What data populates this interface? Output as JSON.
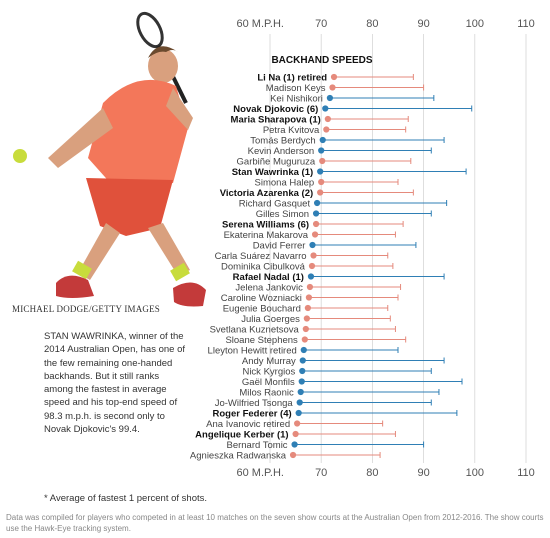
{
  "photo": {
    "credit": "MICHAEL DODGE/GETTY IMAGES",
    "caption": "STAN WAWRINKA, winner of the 2014 Australian Open, has one of the few remaining one-handed backhands. But it still ranks among the fastest in average speed and his top-end speed of 98.3 m.p.h. is second only to Novak Djokovic's 99.4."
  },
  "colors": {
    "female": "#e58a7c",
    "male": "#2f7fb5"
  },
  "chart_data": {
    "type": "scatter",
    "title": "BACKHAND SPEEDS",
    "x_ticks": [
      60,
      70,
      80,
      90,
      100,
      110
    ],
    "x_tick_labels_top": [
      "60 M.P.H.",
      "70",
      "80",
      "90",
      "100",
      "110"
    ],
    "x_tick_labels_bottom": [
      "60 M.P.H.",
      "70",
      "80",
      "90",
      "100",
      "110"
    ],
    "xlim": [
      55,
      113
    ],
    "series": [
      {
        "name": "Li Na (1) retired",
        "gender": "female",
        "bold": true,
        "average": 72.5,
        "top": 88.0
      },
      {
        "name": "Madison Keys",
        "gender": "female",
        "bold": false,
        "average": 72.2,
        "top": 90.0
      },
      {
        "name": "Kei Nishikori",
        "gender": "male",
        "bold": false,
        "average": 71.7,
        "top": 92.0
      },
      {
        "name": "Novak Djokovic (6)",
        "gender": "male",
        "bold": true,
        "average": 70.8,
        "top": 99.4
      },
      {
        "name": "Maria Sharapova (1)",
        "gender": "female",
        "bold": true,
        "average": 71.3,
        "top": 87.0
      },
      {
        "name": "Petra Kvitova",
        "gender": "female",
        "bold": false,
        "average": 71.0,
        "top": 86.5
      },
      {
        "name": "Tomás Berdych",
        "gender": "male",
        "bold": false,
        "average": 70.3,
        "top": 94.0
      },
      {
        "name": "Kevin Anderson",
        "gender": "male",
        "bold": false,
        "average": 70.0,
        "top": 91.5
      },
      {
        "name": "Garbiñe Muguruza",
        "gender": "female",
        "bold": false,
        "average": 70.2,
        "top": 87.5
      },
      {
        "name": "Stan Wawrinka (1)",
        "gender": "male",
        "bold": true,
        "average": 69.8,
        "top": 98.3
      },
      {
        "name": "Simona Halep",
        "gender": "female",
        "bold": false,
        "average": 70.0,
        "top": 85.0
      },
      {
        "name": "Victoria Azarenka (2)",
        "gender": "female",
        "bold": true,
        "average": 69.8,
        "top": 88.0
      },
      {
        "name": "Richard Gasquet",
        "gender": "male",
        "bold": false,
        "average": 69.2,
        "top": 94.5
      },
      {
        "name": "Gilles Simon",
        "gender": "male",
        "bold": false,
        "average": 69.0,
        "top": 91.5
      },
      {
        "name": "Serena Williams (6)",
        "gender": "female",
        "bold": true,
        "average": 69.0,
        "top": 86.0
      },
      {
        "name": "Ekaterina Makarova",
        "gender": "female",
        "bold": false,
        "average": 68.8,
        "top": 84.5
      },
      {
        "name": "David Ferrer",
        "gender": "male",
        "bold": false,
        "average": 68.3,
        "top": 88.5
      },
      {
        "name": "Carla Suárez Navarro",
        "gender": "female",
        "bold": false,
        "average": 68.5,
        "top": 83.0
      },
      {
        "name": "Dominika Cibulková",
        "gender": "female",
        "bold": false,
        "average": 68.2,
        "top": 84.0
      },
      {
        "name": "Rafael Nadal (1)",
        "gender": "male",
        "bold": true,
        "average": 68.0,
        "top": 94.0
      },
      {
        "name": "Jelena Jankovic",
        "gender": "female",
        "bold": false,
        "average": 67.8,
        "top": 85.5
      },
      {
        "name": "Caroline Wozniacki",
        "gender": "female",
        "bold": false,
        "average": 67.6,
        "top": 85.0
      },
      {
        "name": "Eugenie Bouchard",
        "gender": "female",
        "bold": false,
        "average": 67.4,
        "top": 83.0
      },
      {
        "name": "Julia Goerges",
        "gender": "female",
        "bold": false,
        "average": 67.2,
        "top": 83.5
      },
      {
        "name": "Svetlana Kuznetsova",
        "gender": "female",
        "bold": false,
        "average": 67.0,
        "top": 84.5
      },
      {
        "name": "Sloane Stephens",
        "gender": "female",
        "bold": false,
        "average": 66.8,
        "top": 86.5
      },
      {
        "name": "Lleyton Hewitt retired",
        "gender": "male",
        "bold": false,
        "average": 66.6,
        "top": 85.0
      },
      {
        "name": "Andy Murray",
        "gender": "male",
        "bold": false,
        "average": 66.4,
        "top": 94.0
      },
      {
        "name": "Nick Kyrgios",
        "gender": "male",
        "bold": false,
        "average": 66.3,
        "top": 91.5
      },
      {
        "name": "Gaël Monfils",
        "gender": "male",
        "bold": false,
        "average": 66.2,
        "top": 97.5
      },
      {
        "name": "Milos Raonic",
        "gender": "male",
        "bold": false,
        "average": 66.0,
        "top": 93.0
      },
      {
        "name": "Jo-Wilfried Tsonga",
        "gender": "male",
        "bold": false,
        "average": 65.8,
        "top": 91.5
      },
      {
        "name": "Roger Federer (4)",
        "gender": "male",
        "bold": true,
        "average": 65.6,
        "top": 96.5
      },
      {
        "name": "Ana Ivanovic retired",
        "gender": "female",
        "bold": false,
        "average": 65.3,
        "top": 82.0
      },
      {
        "name": "Angelique Kerber (1)",
        "gender": "female",
        "bold": true,
        "average": 65.0,
        "top": 84.5
      },
      {
        "name": "Bernard Tomic",
        "gender": "male",
        "bold": false,
        "average": 64.8,
        "top": 90.0
      },
      {
        "name": "Agnieszka Radwanska",
        "gender": "female",
        "bold": false,
        "average": 64.5,
        "top": 81.5
      }
    ]
  },
  "notes": {
    "footnote": "* Average of fastest 1 percent of shots.",
    "source": "Data was compiled for players who competed in at least 10 matches on the seven show courts at the Australian Open from 2012-2016. The show courts use the Hawk-Eye tracking system."
  }
}
